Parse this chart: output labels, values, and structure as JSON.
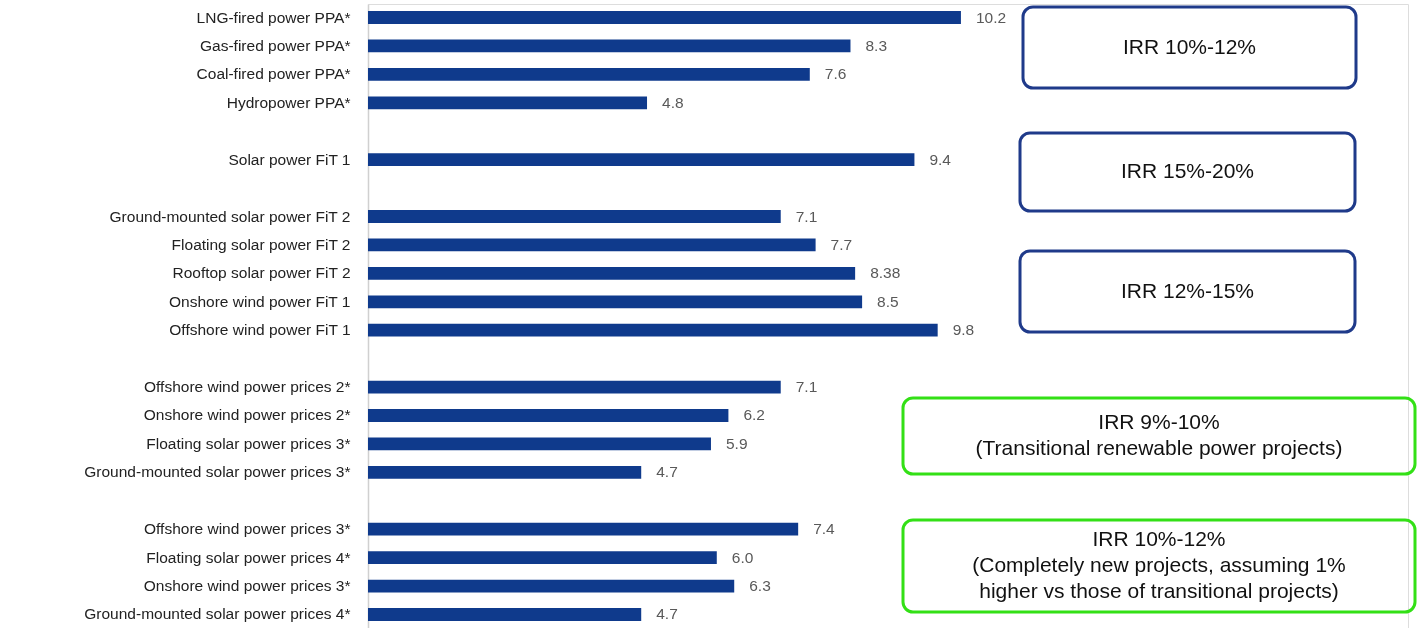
{
  "chart_data": {
    "type": "bar",
    "orientation": "horizontal",
    "categories": [
      "LNG-fired power PPA*",
      "Gas-fired power PPA*",
      "Coal-fired power PPA*",
      "Hydropower PPA*",
      null,
      "Solar power FiT 1",
      null,
      "Ground-mounted solar power FiT 2",
      "Floating solar power FiT 2",
      "Rooftop solar power FiT 2",
      "Onshore wind power FiT 1",
      "Offshore wind power FiT 1",
      null,
      "Offshore wind power prices 2*",
      "Onshore wind power prices 2*",
      "Floating solar power prices 3*",
      "Ground-mounted solar power prices 3*",
      null,
      "Offshore wind power prices 3*",
      "Floating solar power prices 4*",
      "Onshore wind power prices 3*",
      "Ground-mounted solar power prices 4*"
    ],
    "values": [
      10.2,
      8.3,
      7.6,
      4.8,
      null,
      9.4,
      null,
      7.1,
      7.7,
      8.38,
      8.5,
      9.8,
      null,
      7.1,
      6.2,
      5.9,
      4.7,
      null,
      7.4,
      6.0,
      6.3,
      4.7
    ],
    "value_labels": [
      "10.2",
      "8.3",
      "7.6",
      "4.8",
      null,
      "9.4",
      null,
      "7.1",
      "7.7",
      "8.38",
      "8.5",
      "9.8",
      null,
      "7.1",
      "6.2",
      "5.9",
      "4.7",
      null,
      "7.4",
      "6.0",
      "6.3",
      "4.7"
    ],
    "color": "#0f3a8c",
    "annotations": [
      "IRR 10%-12%",
      "IRR 15%-20%",
      "IRR 12%-15%",
      "IRR 9%-10%\n(Transitional renewable power projects)",
      "IRR 10%-12%\n(Completely new projects, assuming 1%\nhigher vs those of transitional projects)"
    ],
    "grid": false
  }
}
